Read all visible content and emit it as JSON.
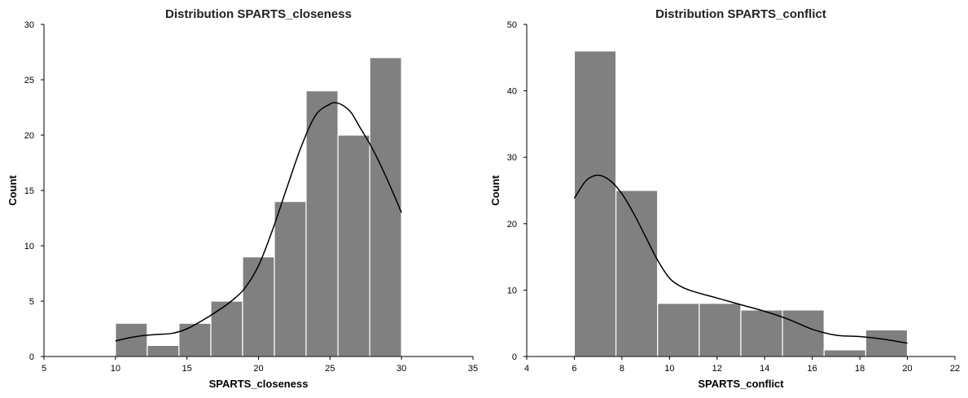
{
  "chart_data": [
    {
      "type": "bar",
      "subtype": "histogram_with_kde",
      "title": "Distribution SPARTS_closeness",
      "xlabel": "SPARTS_closeness",
      "ylabel": "Count",
      "xlim": [
        5,
        35
      ],
      "ylim": [
        0,
        30
      ],
      "xticks": [
        5,
        10,
        15,
        20,
        25,
        30,
        35
      ],
      "yticks": [
        0,
        5,
        10,
        15,
        20,
        25,
        30
      ],
      "bin_edges": [
        10,
        12.22,
        14.44,
        16.67,
        18.89,
        21.11,
        23.33,
        25.56,
        27.78,
        30
      ],
      "values": [
        3,
        1,
        3,
        5,
        9,
        14,
        24,
        20,
        27
      ],
      "kde": {
        "x": [
          10,
          11,
          12,
          13,
          14,
          15,
          16,
          17,
          18,
          19,
          20,
          21,
          22,
          23,
          24,
          25,
          25.5,
          26,
          26.5,
          27,
          28,
          29,
          30
        ],
        "y": [
          1.4,
          1.7,
          1.9,
          2.0,
          2.1,
          2.5,
          3.2,
          4.0,
          4.9,
          6.1,
          8.2,
          11.5,
          15.3,
          19.0,
          21.8,
          22.8,
          22.9,
          22.6,
          22.0,
          20.9,
          18.7,
          16.0,
          13.0
        ]
      },
      "bar_color": "#808080",
      "kde_color": "#000000",
      "grid": false
    },
    {
      "type": "bar",
      "subtype": "histogram_with_kde",
      "title": "Distribution SPARTS_conflict",
      "xlabel": "SPARTS_conflict",
      "ylabel": "Count",
      "xlim": [
        4,
        22
      ],
      "ylim": [
        0,
        50
      ],
      "xticks": [
        4,
        6,
        8,
        10,
        12,
        14,
        16,
        18,
        20,
        22
      ],
      "yticks": [
        0,
        10,
        20,
        30,
        40,
        50
      ],
      "bin_edges": [
        6,
        7.75,
        9.5,
        11.25,
        13,
        14.75,
        16.5,
        18.25,
        20
      ],
      "values": [
        46,
        25,
        8,
        8,
        7,
        7,
        1,
        4
      ],
      "kde": {
        "x": [
          6,
          6.5,
          7,
          7.5,
          8,
          8.5,
          9,
          9.5,
          10,
          10.5,
          11,
          12,
          13,
          14,
          15,
          16,
          17,
          18,
          19,
          20
        ],
        "y": [
          23.8,
          26.5,
          27.3,
          26.5,
          24.5,
          21.5,
          18.0,
          14.5,
          11.8,
          10.5,
          9.8,
          8.8,
          7.8,
          6.8,
          5.6,
          4.1,
          3.2,
          3.0,
          2.6,
          2.0
        ]
      },
      "bar_color": "#808080",
      "kde_color": "#000000",
      "grid": false
    }
  ]
}
